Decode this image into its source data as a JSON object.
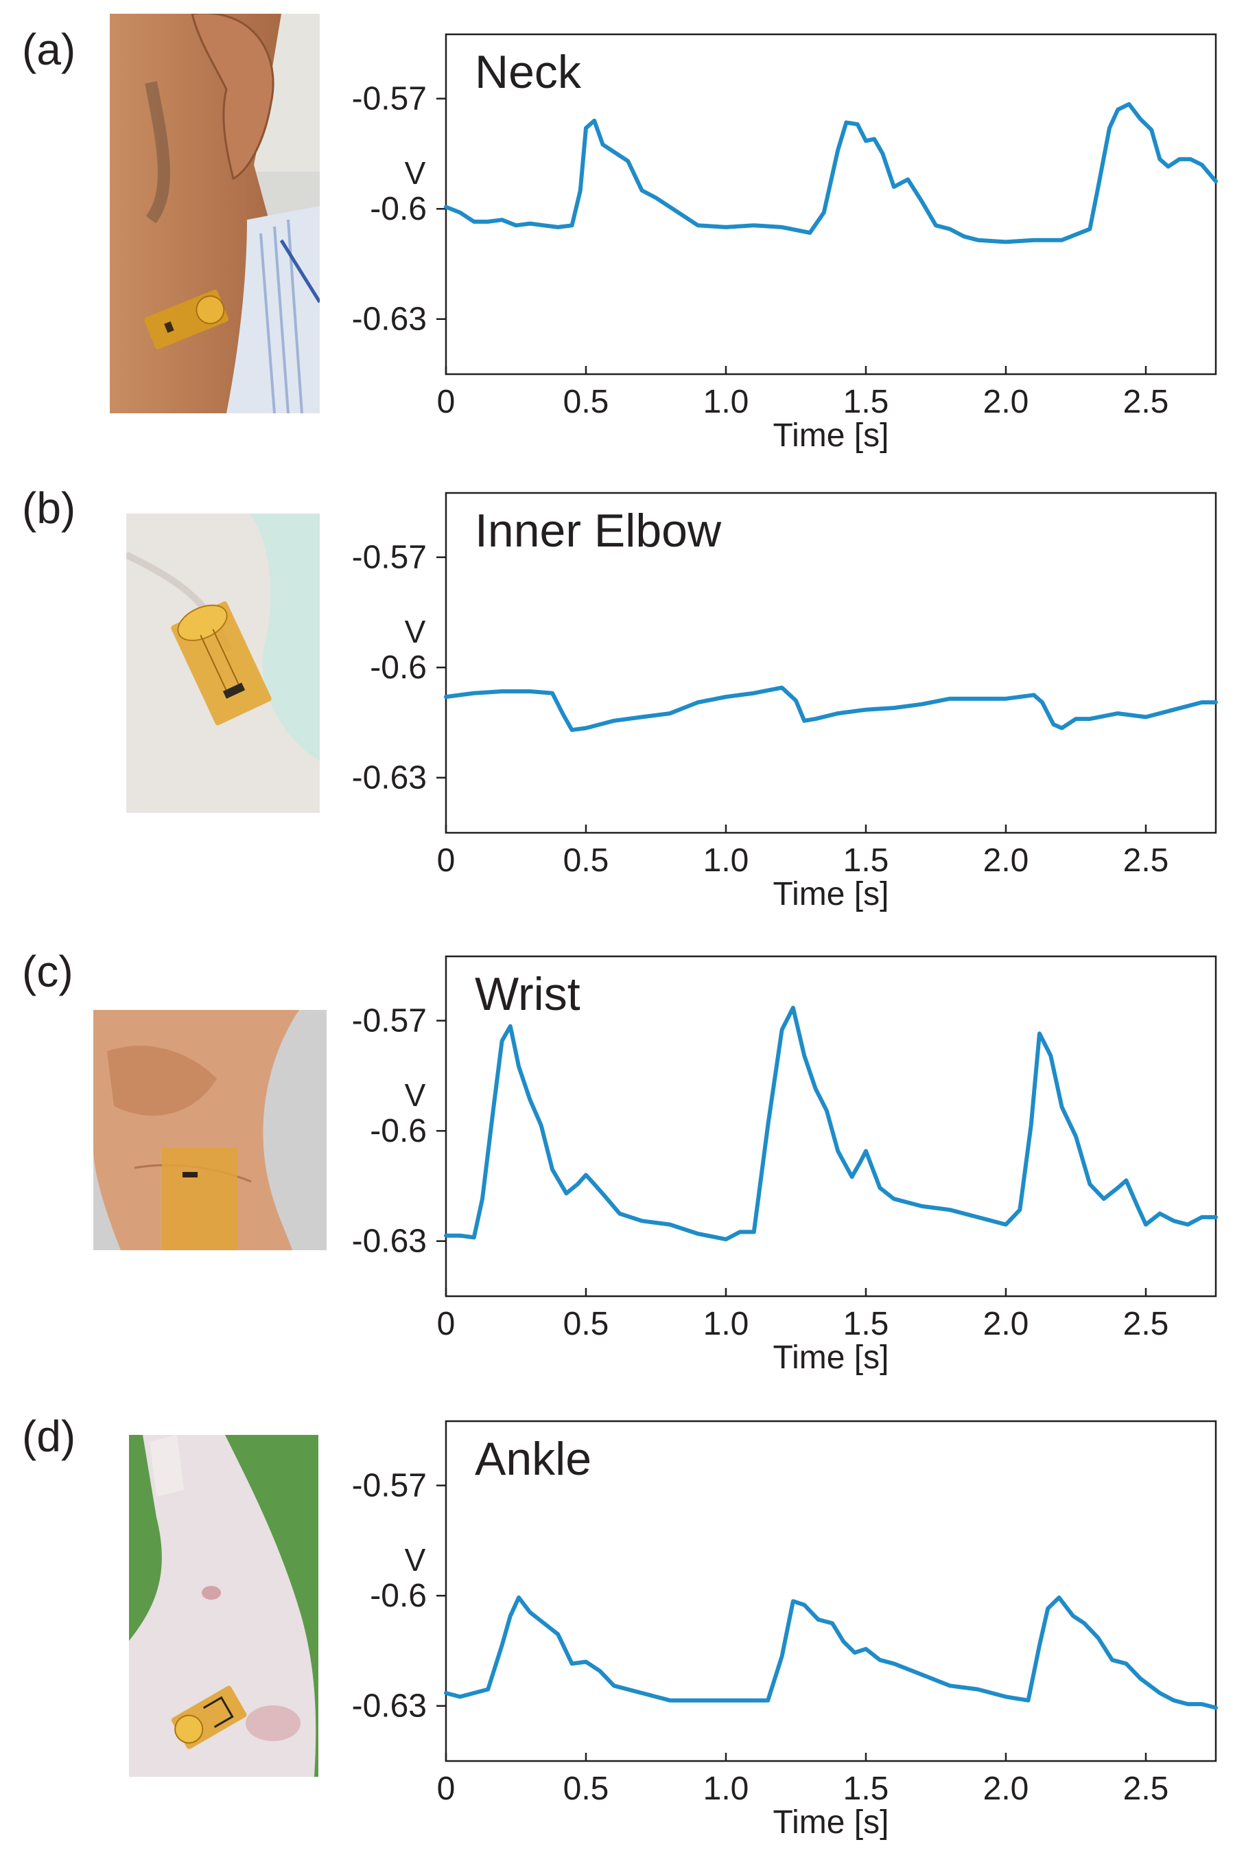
{
  "colors": {
    "trace": "#1f8cc8",
    "axis": "#231f20"
  },
  "chart_data": [
    {
      "type": "line",
      "panel_label": "(a)",
      "title": "Neck",
      "xlabel": "Time [s]",
      "ylabel": "V",
      "xlim": [
        0,
        2.75
      ],
      "ylim": [
        -0.645,
        -0.5525
      ],
      "xticks": [
        0,
        0.5,
        1.0,
        1.5,
        2.0,
        2.5
      ],
      "xtick_labels": [
        "0",
        "0.5",
        "1.0",
        "1.5",
        "2.0",
        "2.5"
      ],
      "yticks": [
        -0.57,
        -0.6,
        -0.63
      ],
      "ytick_labels": [
        "-0.57",
        "-0.6",
        "-0.63"
      ],
      "photo": "neck-sensor-photo",
      "series": [
        {
          "x": [
            0,
            0.05,
            0.1,
            0.15,
            0.2,
            0.25,
            0.3,
            0.35,
            0.4,
            0.45,
            0.48,
            0.5,
            0.53,
            0.56,
            0.6,
            0.65,
            0.7,
            0.75,
            0.8,
            0.85,
            0.9,
            1.0,
            1.1,
            1.2,
            1.3,
            1.35,
            1.4,
            1.43,
            1.47,
            1.5,
            1.53,
            1.56,
            1.6,
            1.65,
            1.7,
            1.75,
            1.8,
            1.85,
            1.9,
            2.0,
            2.1,
            2.2,
            2.3,
            2.33,
            2.37,
            2.4,
            2.44,
            2.48,
            2.52,
            2.55,
            2.58,
            2.62,
            2.66,
            2.7,
            2.75
          ],
          "y": [
            -0.5995,
            -0.601,
            -0.6035,
            -0.6035,
            -0.603,
            -0.6045,
            -0.604,
            -0.6045,
            -0.605,
            -0.6045,
            -0.595,
            -0.578,
            -0.576,
            -0.5825,
            -0.5845,
            -0.587,
            -0.595,
            -0.597,
            -0.5995,
            -0.602,
            -0.6045,
            -0.605,
            -0.6045,
            -0.605,
            -0.6065,
            -0.601,
            -0.584,
            -0.5765,
            -0.577,
            -0.5815,
            -0.581,
            -0.585,
            -0.594,
            -0.592,
            -0.598,
            -0.6045,
            -0.6055,
            -0.6075,
            -0.6085,
            -0.609,
            -0.6085,
            -0.6085,
            -0.6055,
            -0.594,
            -0.578,
            -0.573,
            -0.5715,
            -0.5755,
            -0.5785,
            -0.5865,
            -0.5885,
            -0.5865,
            -0.5865,
            -0.588,
            -0.5925
          ]
        }
      ]
    },
    {
      "type": "line",
      "panel_label": "(b)",
      "title": "Inner Elbow",
      "xlabel": "Time [s]",
      "ylabel": "V",
      "xlim": [
        0,
        2.75
      ],
      "ylim": [
        -0.645,
        -0.5525
      ],
      "xticks": [
        0,
        0.5,
        1.0,
        1.5,
        2.0,
        2.5
      ],
      "xtick_labels": [
        "0",
        "0.5",
        "1.0",
        "1.5",
        "2.0",
        "2.5"
      ],
      "yticks": [
        -0.57,
        -0.6,
        -0.63
      ],
      "ytick_labels": [
        "-0.57",
        "-0.6",
        "-0.63"
      ],
      "photo": "inner-elbow-sensor-photo",
      "series": [
        {
          "x": [
            0,
            0.1,
            0.2,
            0.3,
            0.38,
            0.42,
            0.45,
            0.5,
            0.6,
            0.7,
            0.8,
            0.9,
            1.0,
            1.1,
            1.2,
            1.25,
            1.28,
            1.32,
            1.4,
            1.5,
            1.6,
            1.7,
            1.8,
            1.9,
            2.0,
            2.1,
            2.13,
            2.17,
            2.2,
            2.25,
            2.3,
            2.4,
            2.5,
            2.6,
            2.7,
            2.75
          ],
          "y": [
            -0.608,
            -0.607,
            -0.6065,
            -0.6065,
            -0.607,
            -0.613,
            -0.617,
            -0.6165,
            -0.6145,
            -0.6135,
            -0.6125,
            -0.6095,
            -0.608,
            -0.607,
            -0.6055,
            -0.609,
            -0.6145,
            -0.614,
            -0.6125,
            -0.6115,
            -0.611,
            -0.61,
            -0.6085,
            -0.6085,
            -0.6085,
            -0.6075,
            -0.6095,
            -0.6155,
            -0.6165,
            -0.614,
            -0.614,
            -0.6125,
            -0.6135,
            -0.6115,
            -0.6095,
            -0.6095
          ]
        }
      ]
    },
    {
      "type": "line",
      "panel_label": "(c)",
      "title": "Wrist",
      "xlabel": "Time [s]",
      "ylabel": "V",
      "xlim": [
        0,
        2.75
      ],
      "ylim": [
        -0.645,
        -0.5525
      ],
      "xticks": [
        0,
        0.5,
        1.0,
        1.5,
        2.0,
        2.5
      ],
      "xtick_labels": [
        "0",
        "0.5",
        "1.0",
        "1.5",
        "2.0",
        "2.5"
      ],
      "yticks": [
        -0.57,
        -0.6,
        -0.63
      ],
      "ytick_labels": [
        "-0.57",
        "-0.6",
        "-0.63"
      ],
      "photo": "wrist-sensor-photo",
      "series": [
        {
          "x": [
            0,
            0.05,
            0.1,
            0.13,
            0.17,
            0.2,
            0.23,
            0.26,
            0.3,
            0.34,
            0.38,
            0.43,
            0.47,
            0.5,
            0.53,
            0.57,
            0.62,
            0.7,
            0.8,
            0.9,
            1.0,
            1.05,
            1.1,
            1.15,
            1.2,
            1.24,
            1.28,
            1.32,
            1.36,
            1.4,
            1.45,
            1.48,
            1.5,
            1.55,
            1.6,
            1.7,
            1.8,
            1.9,
            2.0,
            2.05,
            2.09,
            2.12,
            2.16,
            2.2,
            2.25,
            2.3,
            2.35,
            2.4,
            2.43,
            2.47,
            2.5,
            2.55,
            2.6,
            2.65,
            2.7,
            2.75
          ],
          "y": [
            -0.6285,
            -0.6285,
            -0.629,
            -0.6185,
            -0.5935,
            -0.5755,
            -0.5715,
            -0.5825,
            -0.5915,
            -0.5985,
            -0.6105,
            -0.617,
            -0.6145,
            -0.612,
            -0.6145,
            -0.618,
            -0.6225,
            -0.6245,
            -0.6255,
            -0.628,
            -0.6295,
            -0.6275,
            -0.6275,
            -0.5985,
            -0.5725,
            -0.5665,
            -0.5795,
            -0.5885,
            -0.5945,
            -0.6055,
            -0.6125,
            -0.6085,
            -0.6055,
            -0.6155,
            -0.6185,
            -0.6205,
            -0.6215,
            -0.6235,
            -0.6255,
            -0.6215,
            -0.5985,
            -0.5735,
            -0.5795,
            -0.5935,
            -0.6015,
            -0.6145,
            -0.6185,
            -0.6155,
            -0.6135,
            -0.6205,
            -0.6255,
            -0.6225,
            -0.6245,
            -0.6255,
            -0.6235,
            -0.6235
          ]
        }
      ]
    },
    {
      "type": "line",
      "panel_label": "(d)",
      "title": "Ankle",
      "xlabel": "Time [s]",
      "ylabel": "V",
      "xlim": [
        0,
        2.75
      ],
      "ylim": [
        -0.645,
        -0.5525
      ],
      "xticks": [
        0,
        0.5,
        1.0,
        1.5,
        2.0,
        2.5
      ],
      "xtick_labels": [
        "0",
        "0.5",
        "1.0",
        "1.5",
        "2.0",
        "2.5"
      ],
      "yticks": [
        -0.57,
        -0.6,
        -0.63
      ],
      "ytick_labels": [
        "-0.57",
        "-0.6",
        "-0.63"
      ],
      "photo": "ankle-sensor-photo",
      "series": [
        {
          "x": [
            0,
            0.05,
            0.1,
            0.15,
            0.2,
            0.23,
            0.26,
            0.3,
            0.35,
            0.4,
            0.45,
            0.5,
            0.55,
            0.6,
            0.7,
            0.8,
            0.9,
            1.0,
            1.1,
            1.15,
            1.2,
            1.24,
            1.28,
            1.33,
            1.38,
            1.42,
            1.46,
            1.5,
            1.55,
            1.6,
            1.7,
            1.8,
            1.9,
            2.0,
            2.08,
            2.12,
            2.15,
            2.19,
            2.24,
            2.28,
            2.33,
            2.38,
            2.43,
            2.48,
            2.55,
            2.6,
            2.65,
            2.7,
            2.75
          ],
          "y": [
            -0.6265,
            -0.6275,
            -0.6265,
            -0.6255,
            -0.6135,
            -0.6055,
            -0.6005,
            -0.6045,
            -0.6075,
            -0.6105,
            -0.6185,
            -0.618,
            -0.6205,
            -0.6245,
            -0.6265,
            -0.6285,
            -0.6285,
            -0.6285,
            -0.6285,
            -0.6285,
            -0.6165,
            -0.6015,
            -0.6025,
            -0.6065,
            -0.6075,
            -0.6125,
            -0.6155,
            -0.6145,
            -0.6175,
            -0.6185,
            -0.6215,
            -0.6245,
            -0.6255,
            -0.6275,
            -0.6285,
            -0.6135,
            -0.6035,
            -0.6005,
            -0.6055,
            -0.6075,
            -0.6115,
            -0.6175,
            -0.6185,
            -0.6225,
            -0.6265,
            -0.6285,
            -0.6295,
            -0.6295,
            -0.6305
          ]
        }
      ]
    }
  ]
}
